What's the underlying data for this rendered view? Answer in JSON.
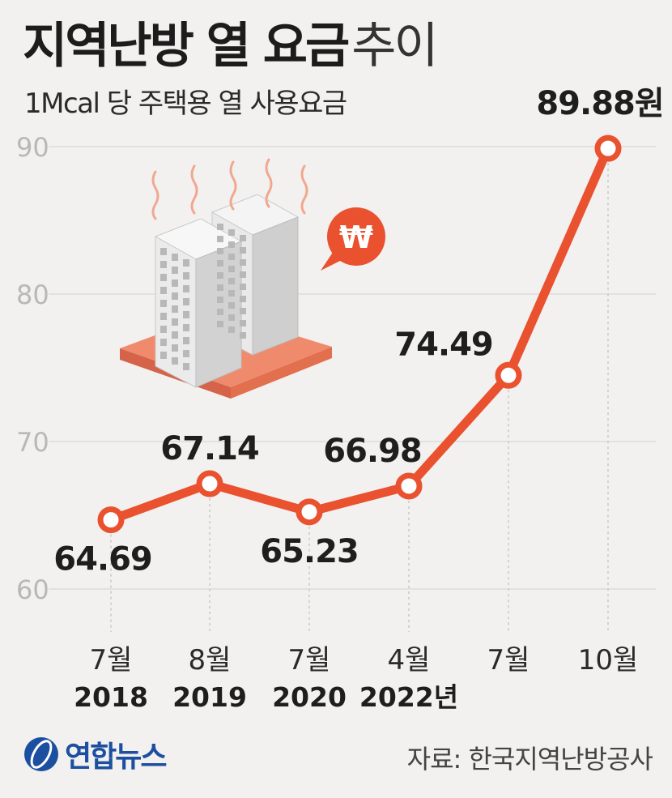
{
  "header": {
    "title_main": "지역난방 열 요금",
    "title_light": "추이",
    "subtitle": "1Mcal 당 주택용 열 사용요금"
  },
  "footer": {
    "logo_text": "연합뉴스",
    "source": "자료: 한국지역난방공사"
  },
  "colors": {
    "line": "#e9512f",
    "background": "#f2f1ef",
    "grid": "#d9d8d5",
    "axis_text": "#b9b8b4",
    "tile": "#f08a6c"
  },
  "chart_data": {
    "type": "line",
    "title": "지역난방 열 요금 추이",
    "subtitle": "1Mcal 당 주택용 열 사용요금",
    "y_ticks": [
      "60",
      "70",
      "80",
      "90"
    ],
    "ylim": [
      60,
      90
    ],
    "grid": true,
    "categories": [
      {
        "month": "7월",
        "year": "2018"
      },
      {
        "month": "8월",
        "year": "2019"
      },
      {
        "month": "7월",
        "year": "2020"
      },
      {
        "month": "4월",
        "year": "2022년"
      },
      {
        "month": "7월",
        "year": ""
      },
      {
        "month": "10월",
        "year": ""
      }
    ],
    "series": [
      {
        "values": [
          64.69,
          67.14,
          65.23,
          66.98,
          74.49,
          89.88
        ],
        "labels": [
          "64.69",
          "67.14",
          "65.23",
          "66.98",
          "74.49",
          "89.88원"
        ]
      }
    ],
    "icon": "district-heating-buildings-with-won-speech-bubble"
  }
}
